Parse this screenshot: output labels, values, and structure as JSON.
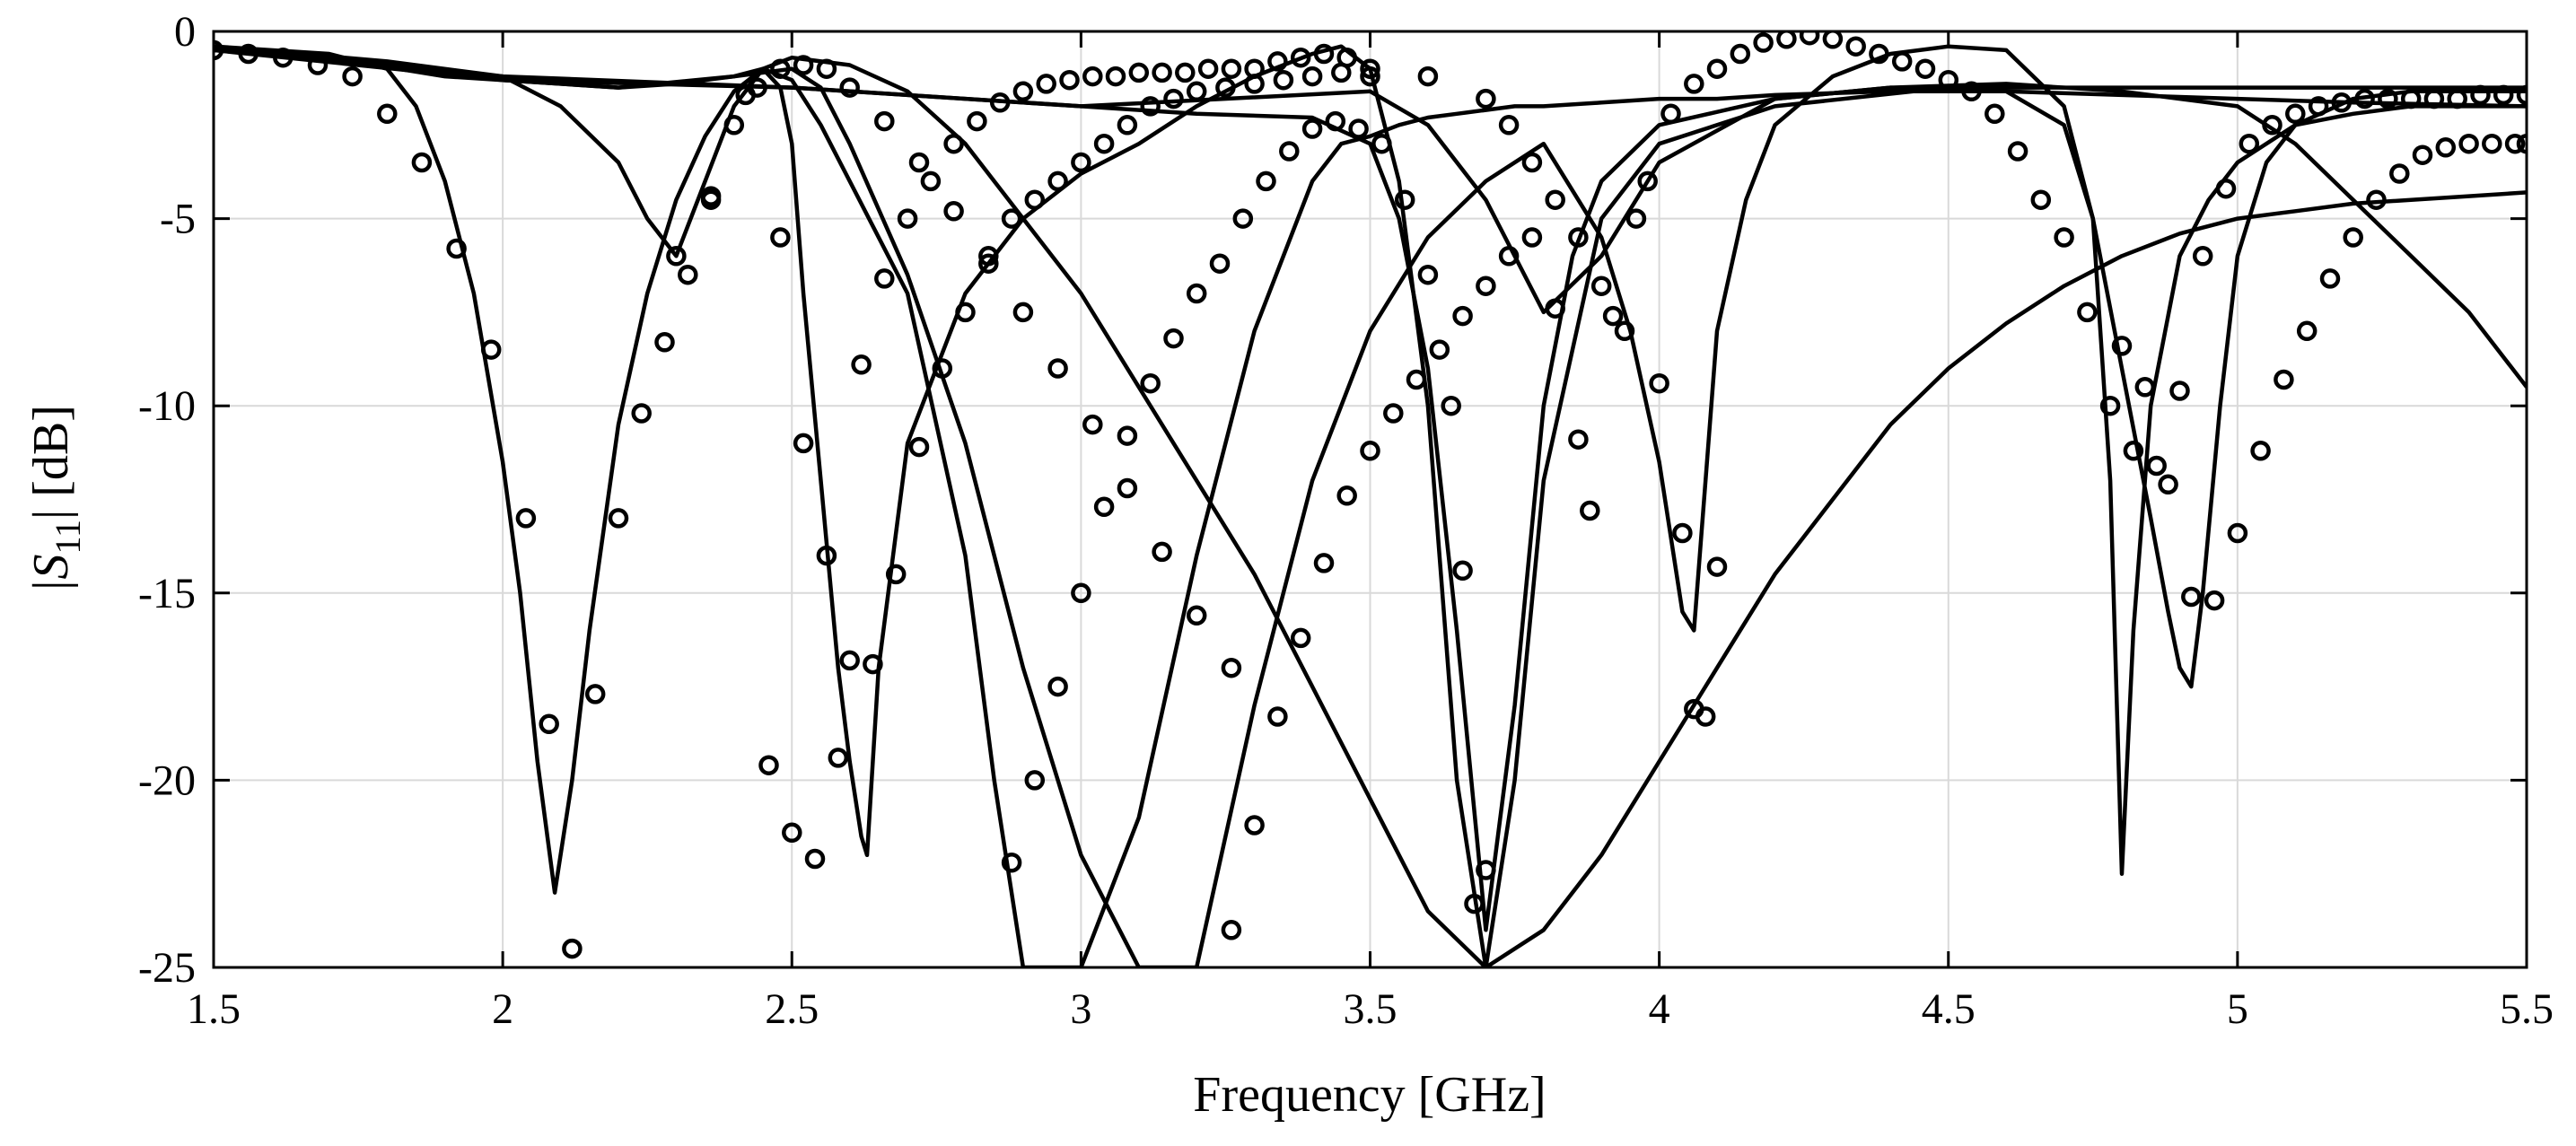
{
  "chart_data": {
    "type": "line",
    "xlabel": "Frequency [GHz]",
    "ylabel": {
      "main": "|S",
      "sub": "11",
      "tail": "| [dB]"
    },
    "xlim": [
      1.5,
      5.5
    ],
    "ylim": [
      -25,
      0
    ],
    "xticks": [
      1.5,
      2,
      2.5,
      3,
      3.5,
      4,
      4.5,
      5,
      5.5
    ],
    "xtick_labels": [
      "1.5",
      "2",
      "2.5",
      "3",
      "3.5",
      "4",
      "4.5",
      "5",
      "5.5"
    ],
    "yticks": [
      0,
      -5,
      -10,
      -15,
      -20,
      -25
    ],
    "ytick_labels": [
      "0",
      "-5",
      "-10",
      "-15",
      "-20",
      "-25"
    ],
    "grid": true,
    "legend": "none",
    "series": [
      {
        "style": "line",
        "x": [
          1.5,
          1.6,
          1.7,
          1.8,
          1.85,
          1.9,
          1.95,
          2.0,
          2.03,
          2.06,
          2.09,
          2.12,
          2.15,
          2.2,
          2.25,
          2.3,
          2.35,
          2.4,
          2.45,
          2.5,
          2.6,
          2.7,
          2.8,
          2.9,
          3.0,
          3.1,
          3.2,
          3.3,
          3.4,
          3.5,
          3.6,
          3.7,
          3.8,
          3.9,
          4.0,
          4.1,
          4.2,
          4.3,
          4.4,
          4.5,
          4.6,
          4.7,
          4.8,
          4.9,
          5.0,
          5.1,
          5.2,
          5.3,
          5.4,
          5.5
        ],
        "y": [
          -0.4,
          -0.5,
          -0.6,
          -1.0,
          -2.0,
          -4.0,
          -7.0,
          -11.5,
          -15.0,
          -19.5,
          -23.0,
          -20.0,
          -16.0,
          -10.5,
          -7.0,
          -4.5,
          -2.8,
          -1.6,
          -1.0,
          -0.7,
          -0.9,
          -1.6,
          -3.0,
          -5.0,
          -7.0,
          -9.5,
          -12.0,
          -14.5,
          -17.5,
          -20.5,
          -23.5,
          -25,
          -24,
          -22,
          -19.5,
          -17,
          -14.5,
          -12.5,
          -10.5,
          -9,
          -7.8,
          -6.8,
          -6,
          -5.4,
          -5,
          -4.8,
          -4.6,
          -4.5,
          -4.4,
          -4.3
        ]
      },
      {
        "style": "line",
        "x": [
          1.5,
          1.7,
          1.9,
          2.0,
          2.1,
          2.2,
          2.3,
          2.35,
          2.4,
          2.45,
          2.48,
          2.5,
          2.52,
          2.55,
          2.58,
          2.6,
          2.62,
          2.63,
          2.65,
          2.7,
          2.8,
          2.9,
          3.0,
          3.1,
          3.2,
          3.3,
          3.4,
          3.45,
          3.5,
          3.55,
          3.6,
          3.65,
          3.7,
          3.75,
          3.8,
          3.9,
          4.0,
          4.2,
          4.5,
          4.8,
          5.0,
          5.2,
          5.5
        ],
        "y": [
          -0.5,
          -0.7,
          -1.2,
          -1.3,
          -1.4,
          -1.5,
          -1.4,
          -1.3,
          -1.2,
          -1.0,
          -1.5,
          -3.0,
          -7.0,
          -12.0,
          -17.0,
          -19.5,
          -21.5,
          -22.0,
          -17.0,
          -11.0,
          -7.0,
          -5.0,
          -3.8,
          -3.0,
          -2.0,
          -1.2,
          -0.6,
          -0.4,
          -1.0,
          -4.0,
          -10.0,
          -20.0,
          -25,
          -20,
          -12,
          -5,
          -3,
          -2,
          -1.5,
          -1.5,
          -1.5,
          -1.5,
          -1.5
        ]
      },
      {
        "style": "line",
        "x": [
          1.5,
          1.8,
          2.0,
          2.1,
          2.2,
          2.25,
          2.3,
          2.35,
          2.4,
          2.45,
          2.5,
          2.55,
          2.6,
          2.7,
          2.8,
          2.85,
          2.9,
          2.95,
          3.0,
          3.05,
          3.1,
          3.2,
          3.3,
          3.4,
          3.45,
          3.5,
          3.55,
          3.6,
          3.65,
          3.7,
          3.75,
          3.8,
          3.9,
          4.0,
          4.1,
          4.2,
          4.4,
          4.6,
          4.8,
          5.0,
          5.2,
          5.5
        ],
        "y": [
          -0.4,
          -0.8,
          -1.2,
          -2.0,
          -3.5,
          -5.0,
          -6.0,
          -4.0,
          -2.0,
          -1.0,
          -1.3,
          -2.5,
          -4.0,
          -7.0,
          -14.0,
          -20.0,
          -25,
          -25,
          -25,
          -23.0,
          -21.0,
          -14.0,
          -8.0,
          -4.0,
          -3.0,
          -2.8,
          -2.5,
          -2.3,
          -2.2,
          -2.1,
          -2.0,
          -2.0,
          -1.9,
          -1.8,
          -1.8,
          -1.7,
          -1.6,
          -1.6,
          -1.7,
          -1.8,
          -1.9,
          -2.0
        ]
      },
      {
        "style": "line",
        "x": [
          1.5,
          1.8,
          2.0,
          2.2,
          2.4,
          2.5,
          2.55,
          2.6,
          2.7,
          2.8,
          2.9,
          3.0,
          3.1,
          3.2,
          3.3,
          3.4,
          3.5,
          3.6,
          3.7,
          3.8,
          3.9,
          3.95,
          4.0,
          4.02,
          4.04,
          4.06,
          4.08,
          4.1,
          4.15,
          4.2,
          4.3,
          4.4,
          4.5,
          4.6,
          4.7,
          4.75,
          4.78,
          4.8,
          4.82,
          4.85,
          4.9,
          4.95,
          5.0,
          5.1,
          5.2,
          5.3,
          5.4,
          5.5
        ],
        "y": [
          -0.4,
          -0.9,
          -1.3,
          -1.5,
          -1.2,
          -1.0,
          -1.5,
          -3.0,
          -6.5,
          -11.0,
          -17.0,
          -22.0,
          -25,
          -25,
          -18.0,
          -12.0,
          -8.0,
          -5.5,
          -4.0,
          -3.0,
          -5.5,
          -8.0,
          -11.5,
          -13.5,
          -15.5,
          -16.0,
          -12.0,
          -8.0,
          -4.5,
          -2.5,
          -1.2,
          -0.6,
          -0.4,
          -0.5,
          -2.0,
          -5.0,
          -12.0,
          -22.5,
          -16.0,
          -10.0,
          -6.0,
          -4.5,
          -3.5,
          -2.5,
          -2.2,
          -2.0,
          -2.0,
          -2.0
        ]
      },
      {
        "style": "line",
        "x": [
          1.5,
          2.0,
          2.5,
          3.0,
          3.2,
          3.4,
          3.5,
          3.55,
          3.6,
          3.65,
          3.7,
          3.75,
          3.8,
          3.85,
          3.9,
          4.0,
          4.2,
          4.4,
          4.6,
          4.7,
          4.75,
          4.8,
          4.85,
          4.88,
          4.9,
          4.92,
          4.94,
          4.97,
          5.0,
          5.05,
          5.1,
          5.2,
          5.3,
          5.4,
          5.5
        ],
        "y": [
          -0.5,
          -1.2,
          -1.5,
          -2.0,
          -2.2,
          -2.3,
          -3.0,
          -5.0,
          -9.0,
          -16.0,
          -24.0,
          -18.0,
          -10.0,
          -6.0,
          -4.0,
          -2.5,
          -1.8,
          -1.5,
          -1.6,
          -2.5,
          -5.0,
          -9.0,
          -13.0,
          -15.5,
          -17.0,
          -17.5,
          -15.0,
          -10.0,
          -6.0,
          -3.5,
          -2.5,
          -1.8,
          -1.6,
          -1.6,
          -1.6
        ]
      },
      {
        "style": "line",
        "x": [
          1.5,
          2.0,
          2.5,
          3.0,
          3.5,
          3.6,
          3.7,
          3.8,
          3.9,
          4.0,
          4.2,
          4.4,
          4.6,
          4.8,
          5.0,
          5.1,
          5.2,
          5.3,
          5.4,
          5.45,
          5.5
        ],
        "y": [
          -0.5,
          -1.3,
          -1.5,
          -2.0,
          -1.6,
          -2.5,
          -4.5,
          -7.5,
          -6.0,
          -3.5,
          -1.8,
          -1.5,
          -1.4,
          -1.6,
          -2.0,
          -3.0,
          -4.5,
          -6.0,
          -7.5,
          -8.5,
          -9.5
        ]
      },
      {
        "style": "markers",
        "x": [
          1.5,
          1.56,
          1.62,
          1.68,
          1.74,
          1.8,
          1.86,
          1.92,
          1.98,
          2.04,
          2.08,
          2.12,
          2.16,
          2.2,
          2.24,
          2.28,
          2.32,
          2.36,
          2.4,
          2.44,
          2.48,
          2.52,
          2.56,
          2.6,
          2.66,
          2.72,
          2.78,
          2.84,
          2.9,
          2.96,
          3.02,
          3.08,
          3.14,
          3.2,
          3.26
        ],
        "y": [
          -0.5,
          -0.6,
          -0.7,
          -0.9,
          -1.2,
          -2.2,
          -3.5,
          -5.8,
          -8.5,
          -13.0,
          -18.5,
          -24.5,
          -17.7,
          -13.0,
          -10.2,
          -8.3,
          -6.5,
          -4.5,
          -2.5,
          -1.5,
          -1.0,
          -0.9,
          -1.0,
          -1.5,
          -2.4,
          -3.5,
          -4.8,
          -6.2,
          -7.5,
          -9.0,
          -10.5,
          -12.2,
          -13.9,
          -15.6,
          -17.0
        ]
      },
      {
        "style": "markers",
        "x": [
          2.3,
          2.36,
          2.42,
          2.48,
          2.52,
          2.56,
          2.6,
          2.64,
          2.68,
          2.72,
          2.76,
          2.8,
          2.84,
          2.88,
          2.92,
          2.96,
          3.0,
          3.04,
          3.08,
          3.12,
          3.16,
          3.2,
          3.25,
          3.3,
          3.35,
          3.4,
          3.45,
          3.5
        ],
        "y": [
          -6.0,
          -4.4,
          -1.7,
          -5.5,
          -11.0,
          -14.0,
          -16.8,
          -16.9,
          -14.5,
          -11.1,
          -9.0,
          -7.5,
          -6.0,
          -5.0,
          -4.5,
          -4.0,
          -3.5,
          -3.0,
          -2.5,
          -2.0,
          -1.8,
          -1.6,
          -1.5,
          -1.4,
          -1.3,
          -1.2,
          -1.1,
          -1.0
        ]
      },
      {
        "style": "markers",
        "x": [
          2.46,
          2.5,
          2.54,
          2.58,
          2.62,
          2.66,
          2.7,
          2.74,
          2.78,
          2.82,
          2.86,
          2.9,
          2.94,
          2.98,
          3.02,
          3.06,
          3.1,
          3.14,
          3.18,
          3.22,
          3.26,
          3.3,
          3.34,
          3.38,
          3.42,
          3.46
        ],
        "y": [
          -19.6,
          -21.4,
          -22.1,
          -19.4,
          -8.9,
          -6.6,
          -5.0,
          -4.0,
          -3.0,
          -2.4,
          -1.9,
          -1.6,
          -1.4,
          -1.3,
          -1.2,
          -1.2,
          -1.1,
          -1.1,
          -1.1,
          -1.0,
          -1.0,
          -1.0,
          -0.8,
          -0.7,
          -0.6,
          -0.7
        ]
      },
      {
        "style": "markers",
        "x": [
          2.88,
          2.92,
          2.96,
          3.0,
          3.04,
          3.08,
          3.12,
          3.16,
          3.2,
          3.24,
          3.28,
          3.32,
          3.36,
          3.4,
          3.44,
          3.48,
          3.52,
          3.56,
          3.6,
          3.64,
          3.66,
          3.68,
          3.7
        ],
        "y": [
          -22.2,
          -20.0,
          -17.5,
          -15.0,
          -12.7,
          -10.8,
          -9.4,
          -8.2,
          -7.0,
          -6.2,
          -5.0,
          -4.0,
          -3.2,
          -2.6,
          -2.4,
          -2.6,
          -3.0,
          -4.5,
          -6.5,
          -10.0,
          -14.4,
          -23.3,
          -22.4
        ]
      },
      {
        "style": "markers",
        "x": [
          3.26,
          3.3,
          3.34,
          3.38,
          3.42,
          3.46,
          3.5,
          3.54,
          3.58,
          3.62,
          3.66,
          3.7,
          3.74,
          3.78,
          3.82,
          3.86,
          3.88,
          3.92,
          3.96,
          4.0,
          4.04,
          4.06,
          4.08,
          4.1
        ],
        "y": [
          -24.0,
          -21.2,
          -18.3,
          -16.2,
          -14.2,
          -12.4,
          -11.2,
          -10.2,
          -9.3,
          -8.5,
          -7.6,
          -6.8,
          -6.0,
          -5.5,
          -7.4,
          -10.9,
          -12.8,
          -7.6,
          -5.0,
          -9.4,
          -13.4,
          -18.1,
          -18.3,
          -14.3
        ]
      },
      {
        "style": "markers",
        "x": [
          3.5,
          3.6,
          3.7,
          3.74,
          3.78,
          3.82,
          3.86,
          3.9,
          3.94,
          3.98,
          4.02,
          4.06,
          4.1,
          4.14,
          4.18,
          4.22,
          4.26,
          4.3,
          4.34,
          4.38,
          4.42,
          4.46,
          4.5,
          4.54,
          4.58,
          4.62,
          4.66,
          4.7,
          4.74,
          4.78,
          4.82,
          4.86,
          4.9,
          4.94,
          4.98,
          5.02,
          5.06,
          5.1,
          5.14,
          5.18,
          5.22,
          5.26,
          5.3,
          5.34,
          5.38,
          5.42,
          5.46,
          5.5
        ],
        "y": [
          -1.2,
          -1.2,
          -1.8,
          -2.5,
          -3.5,
          -4.5,
          -5.5,
          -6.8,
          -8.0,
          -4.0,
          -2.2,
          -1.4,
          -1.0,
          -0.6,
          -0.3,
          -0.2,
          -0.1,
          -0.2,
          -0.4,
          -0.6,
          -0.8,
          -1.0,
          -1.3,
          -1.6,
          -2.2,
          -3.2,
          -4.5,
          -5.5,
          -7.5,
          -10.0,
          -11.2,
          -11.6,
          -9.6,
          -6.0,
          -4.2,
          -3.0,
          -2.5,
          -2.2,
          -2.0,
          -1.9,
          -1.8,
          -1.8,
          -1.8,
          -1.8,
          -1.8,
          -1.7,
          -1.7,
          -1.7
        ]
      },
      {
        "style": "markers",
        "x": [
          4.8,
          4.84,
          4.88,
          4.92,
          4.96,
          5.0,
          5.04,
          5.08,
          5.12,
          5.16,
          5.2,
          5.24,
          5.28,
          5.32,
          5.36,
          5.4,
          5.44,
          5.48,
          5.5
        ],
        "y": [
          -8.4,
          -9.5,
          -12.1,
          -15.1,
          -15.2,
          -13.4,
          -11.2,
          -9.3,
          -8.0,
          -6.6,
          -5.5,
          -4.5,
          -3.8,
          -3.3,
          -3.1,
          -3.0,
          -3.0,
          -3.0,
          -3.0
        ]
      }
    ]
  }
}
